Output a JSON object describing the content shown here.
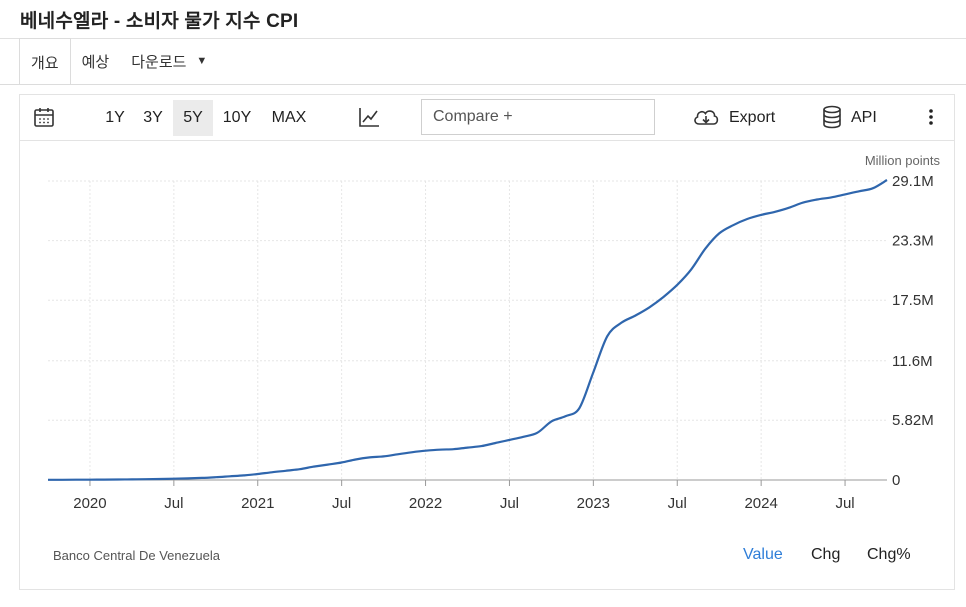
{
  "title": "베네수엘라 - 소비자 물가 지수 CPI",
  "tabs": [
    {
      "label": "개요"
    },
    {
      "label": "예상"
    },
    {
      "label": "다운로드"
    }
  ],
  "toolbar": {
    "ranges": [
      "1Y",
      "3Y",
      "5Y",
      "10Y",
      "MAX"
    ],
    "active_range": "5Y",
    "compare_placeholder": "Compare +",
    "export_label": "Export",
    "api_label": "API",
    "icons": {
      "calendar": "calendar-icon",
      "chart_type": "line-chart-icon",
      "export": "cloud-download-icon",
      "api": "database-icon",
      "more": "more-vertical-icon"
    }
  },
  "footer": {
    "source": "Banco Central De Venezuela",
    "modes": [
      "Value",
      "Chg",
      "Chg%"
    ],
    "active_mode": "Value"
  },
  "colors": {
    "line": "#2f66ad",
    "active": "#2f7ed8",
    "grid": "#e6e6e6"
  },
  "chart_data": {
    "type": "line",
    "title": "",
    "unit_label": "Million points",
    "xlabel": "",
    "ylabel": "",
    "ylim": [
      0,
      29.1
    ],
    "yticks": [
      0,
      5.82,
      11.6,
      17.5,
      23.3,
      29.1
    ],
    "ytick_labels": [
      "0",
      "5.82M",
      "11.6M",
      "17.5M",
      "23.3M",
      "29.1M"
    ],
    "x_ticks": [
      {
        "date": "2020-01",
        "label": "2020"
      },
      {
        "date": "2020-07",
        "label": "Jul"
      },
      {
        "date": "2021-01",
        "label": "2021"
      },
      {
        "date": "2021-07",
        "label": "Jul"
      },
      {
        "date": "2022-01",
        "label": "2022"
      },
      {
        "date": "2022-07",
        "label": "Jul"
      },
      {
        "date": "2023-01",
        "label": "2023"
      },
      {
        "date": "2023-07",
        "label": "Jul"
      },
      {
        "date": "2024-01",
        "label": "2024"
      },
      {
        "date": "2024-07",
        "label": "Jul"
      }
    ],
    "x_range": [
      "2019-10",
      "2024-10"
    ],
    "grid": true,
    "series": [
      {
        "x": [
          "2019-10",
          "2019-11",
          "2019-12",
          "2020-01",
          "2020-02",
          "2020-03",
          "2020-04",
          "2020-05",
          "2020-06",
          "2020-07",
          "2020-08",
          "2020-09",
          "2020-10",
          "2020-11",
          "2020-12",
          "2021-01",
          "2021-02",
          "2021-03",
          "2021-04",
          "2021-05",
          "2021-06",
          "2021-07",
          "2021-08",
          "2021-09",
          "2021-10",
          "2021-11",
          "2021-12",
          "2022-01",
          "2022-02",
          "2022-03",
          "2022-04",
          "2022-05",
          "2022-06",
          "2022-07",
          "2022-08",
          "2022-09",
          "2022-10",
          "2022-11",
          "2022-12",
          "2023-01",
          "2023-02",
          "2023-03",
          "2023-04",
          "2023-05",
          "2023-06",
          "2023-07",
          "2023-08",
          "2023-09",
          "2023-10",
          "2023-11",
          "2023-12",
          "2024-01",
          "2024-02",
          "2024-03",
          "2024-04",
          "2024-05",
          "2024-06",
          "2024-07",
          "2024-08",
          "2024-09",
          "2024-10"
        ],
        "values": [
          0.02,
          0.02,
          0.03,
          0.03,
          0.04,
          0.05,
          0.06,
          0.08,
          0.1,
          0.13,
          0.16,
          0.2,
          0.27,
          0.36,
          0.45,
          0.58,
          0.75,
          0.9,
          1.05,
          1.3,
          1.5,
          1.7,
          2.0,
          2.2,
          2.3,
          2.5,
          2.7,
          2.85,
          2.95,
          3.0,
          3.15,
          3.3,
          3.6,
          3.9,
          4.2,
          4.6,
          5.7,
          6.2,
          7.0,
          10.5,
          14.0,
          15.3,
          16.0,
          16.8,
          17.8,
          19.0,
          20.5,
          22.5,
          24.0,
          24.8,
          25.4,
          25.8,
          26.1,
          26.5,
          27.0,
          27.3,
          27.5,
          27.8,
          28.1,
          28.4,
          29.2
        ]
      }
    ]
  }
}
